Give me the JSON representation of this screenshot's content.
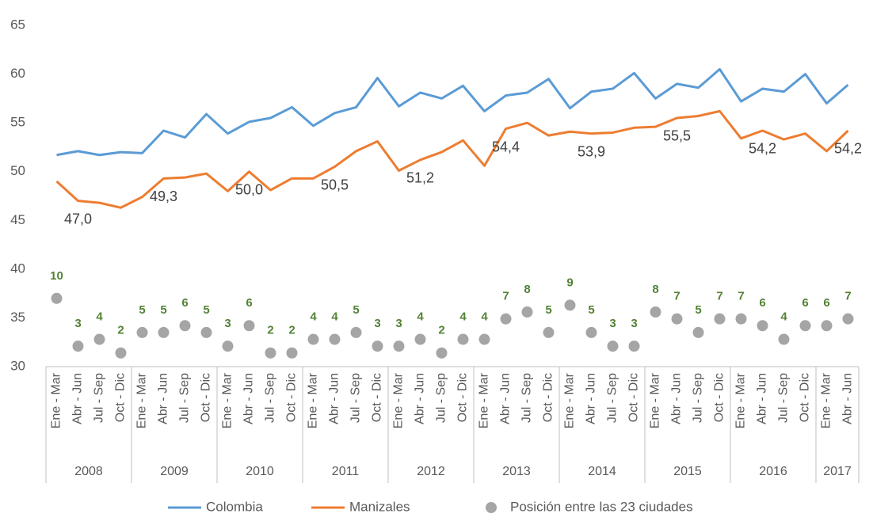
{
  "chart_data": {
    "type": "line",
    "categories": [
      "Ene - Mar",
      "Abr - Jun",
      "Jul - Sep",
      "Oct - Dic",
      "Ene - Mar",
      "Abr - Jun",
      "Jul - Sep",
      "Oct - Dic",
      "Ene - Mar",
      "Abr - Jun",
      "Jul - Sep",
      "Oct - Dic",
      "Ene - Mar",
      "Abr - Jun",
      "Jul - Sep",
      "Oct - Dic",
      "Ene - Mar",
      "Abr - Jun",
      "Jul - Sep",
      "Oct - Dic",
      "Ene - Mar",
      "Abr - Jun",
      "Jul - Sep",
      "Oct - Dic",
      "Ene - Mar",
      "Abr - Jun",
      "Jul - Sep",
      "Oct - Dic",
      "Ene - Mar",
      "Abr - Jun",
      "Jul - Sep",
      "Oct - Dic",
      "Ene - Mar",
      "Abr - Jun",
      "Jul - Sep",
      "Oct - Dic",
      "Ene - Mar",
      "Abr - Jun"
    ],
    "years": [
      "2008",
      "2009",
      "2010",
      "2011",
      "2012",
      "2013",
      "2014",
      "2015",
      "2016",
      "2017"
    ],
    "series": [
      {
        "name": "Colombia",
        "color": "#5b9bd5",
        "values": [
          51.7,
          52.1,
          51.7,
          52.0,
          51.9,
          54.2,
          53.5,
          55.9,
          53.9,
          55.1,
          55.5,
          56.6,
          54.7,
          56.0,
          56.6,
          59.6,
          56.7,
          58.1,
          57.5,
          58.8,
          56.2,
          57.8,
          58.1,
          59.5,
          56.5,
          58.2,
          58.5,
          60.1,
          57.5,
          59.0,
          58.6,
          60.5,
          57.2,
          58.5,
          58.2,
          60.0,
          57.0,
          58.9
        ]
      },
      {
        "name": "Manizales",
        "color": "#ed7d31",
        "values": [
          49.0,
          47.0,
          46.8,
          46.3,
          47.4,
          49.3,
          49.4,
          49.8,
          48.0,
          50.0,
          48.1,
          49.3,
          49.3,
          50.5,
          52.1,
          53.1,
          50.1,
          51.2,
          52.0,
          53.2,
          50.6,
          54.4,
          55.0,
          53.7,
          54.1,
          53.9,
          54.0,
          54.5,
          54.6,
          55.5,
          55.7,
          56.2,
          53.4,
          54.2,
          53.3,
          53.9,
          52.1,
          54.2
        ],
        "value_labels": [
          null,
          "47,0",
          null,
          null,
          null,
          "49,3",
          null,
          null,
          null,
          "50,0",
          null,
          null,
          null,
          "50,5",
          null,
          null,
          null,
          "51,2",
          null,
          null,
          null,
          "54,4",
          null,
          null,
          null,
          "53,9",
          null,
          null,
          null,
          "55,5",
          null,
          null,
          null,
          "54,2",
          null,
          null,
          null,
          "54,2"
        ]
      },
      {
        "name": "Posición entre las 23 ciudades",
        "color": "#a5a5a5",
        "label_color": "#548235",
        "type": "scatter",
        "axis": "y2",
        "values": [
          10,
          3,
          4,
          2,
          5,
          5,
          6,
          5,
          3,
          6,
          2,
          2,
          4,
          4,
          5,
          3,
          3,
          4,
          2,
          4,
          4,
          7,
          8,
          5,
          9,
          5,
          3,
          3,
          8,
          7,
          5,
          7,
          7,
          6,
          4,
          6,
          6,
          7
        ]
      }
    ],
    "ylim": [
      30,
      65
    ],
    "yticks": [
      30,
      35,
      40,
      45,
      50,
      55,
      60,
      65
    ],
    "y2lim": [
      0,
      50
    ],
    "legend": "bottom",
    "grid": false
  }
}
